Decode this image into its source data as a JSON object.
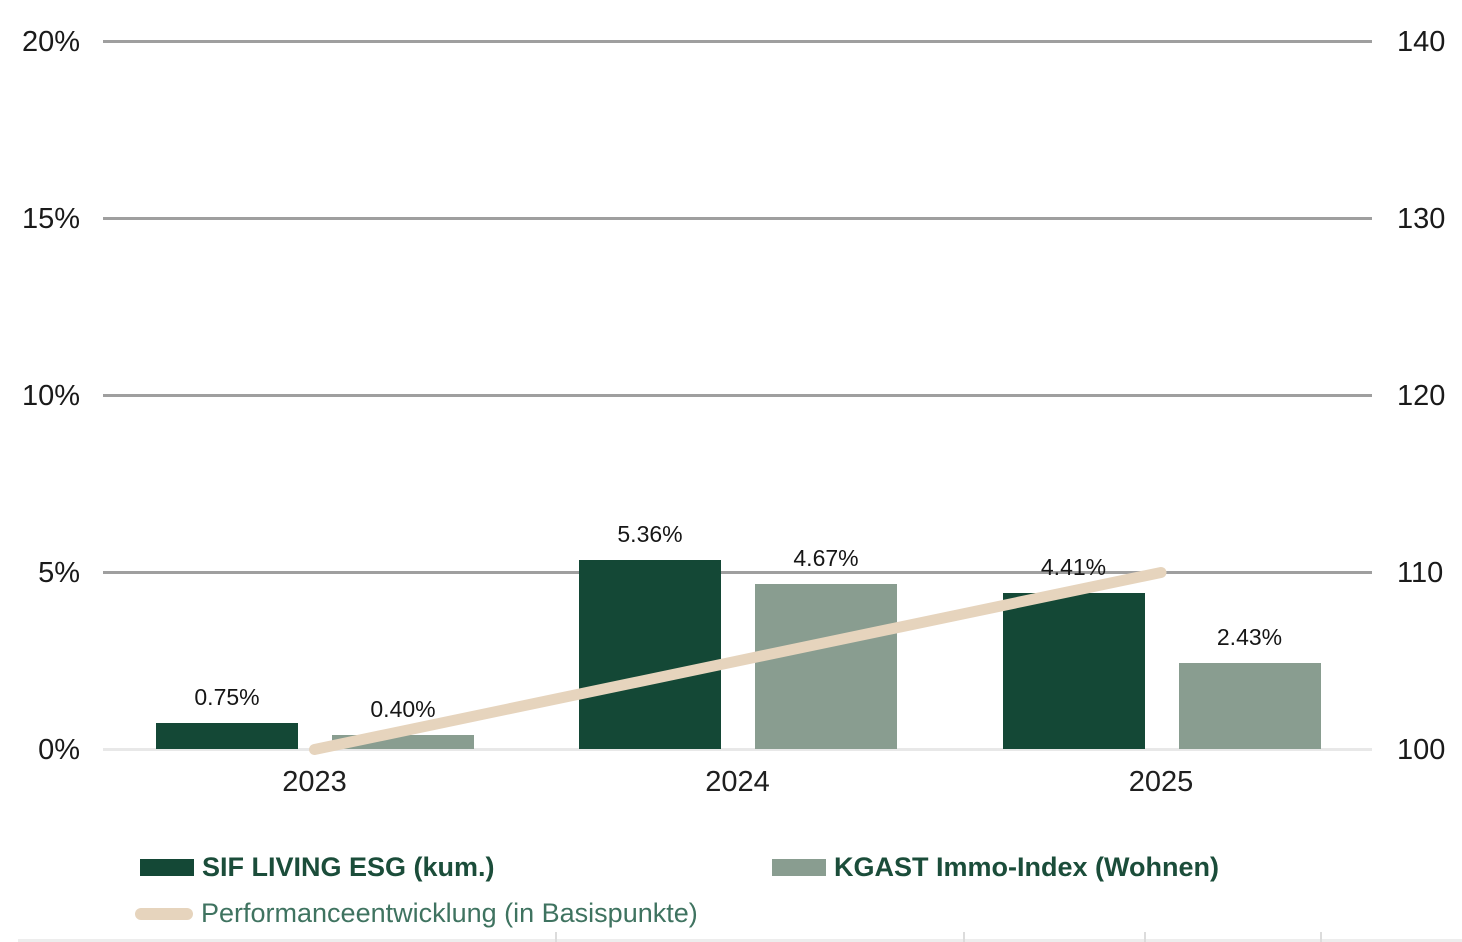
{
  "chart_data": {
    "type": "bar",
    "subtype": "grouped-bars-with-line-overlay",
    "categories": [
      "2023",
      "2024",
      "2025"
    ],
    "series": [
      {
        "name": "SIF LIVING ESG (kum.)",
        "values": [
          0.75,
          5.36,
          4.41
        ],
        "labels": [
          "0.75%",
          "5.36%",
          "4.41%"
        ],
        "color": "#144836",
        "axis": "left"
      },
      {
        "name": "KGAST Immo-Index (Wohnen)",
        "values": [
          0.4,
          4.67,
          2.43
        ],
        "labels": [
          "0.40%",
          "4.67%",
          "2.43%"
        ],
        "color": "#899d90",
        "axis": "left"
      }
    ],
    "line_series": {
      "name": "Performanceentwicklung (in Basispunkte)",
      "values": [
        100,
        105,
        110
      ],
      "color": "#e6d4bd",
      "axis": "right"
    },
    "left_axis": {
      "ticks": [
        "0%",
        "5%",
        "10%",
        "15%",
        "20%"
      ],
      "values": [
        0,
        5,
        10,
        15,
        20
      ],
      "range": [
        0,
        20
      ],
      "unit": "%"
    },
    "right_axis": {
      "ticks": [
        "100",
        "110",
        "120",
        "130",
        "140"
      ],
      "values": [
        100,
        110,
        120,
        130,
        140
      ],
      "range": [
        100,
        140
      ],
      "unit": "Basispunkte"
    },
    "grid": true,
    "baseline_value": 0,
    "legend_position": "bottom-left",
    "title": ""
  },
  "legend": {
    "items": [
      {
        "label": "SIF LIVING ESG (kum.)",
        "swatch": "rect",
        "color": "#144836"
      },
      {
        "label": "KGAST Immo-Index (Wohnen)",
        "swatch": "rect",
        "color": "#899d90"
      },
      {
        "label": "Performanceentwicklung (in Basispunkte)",
        "swatch": "line",
        "color": "#e6d4bd"
      }
    ]
  },
  "colors": {
    "bar_dark_green": "#144836",
    "bar_sage": "#899d90",
    "line_beige": "#e6d4bd",
    "gridline": "#9f9f9f",
    "baseline": "#e8e8e8",
    "axis_text": "#1a1a1a",
    "legend_text_bold": "#1b4d3a",
    "legend_text_regular": "#3f7360"
  }
}
